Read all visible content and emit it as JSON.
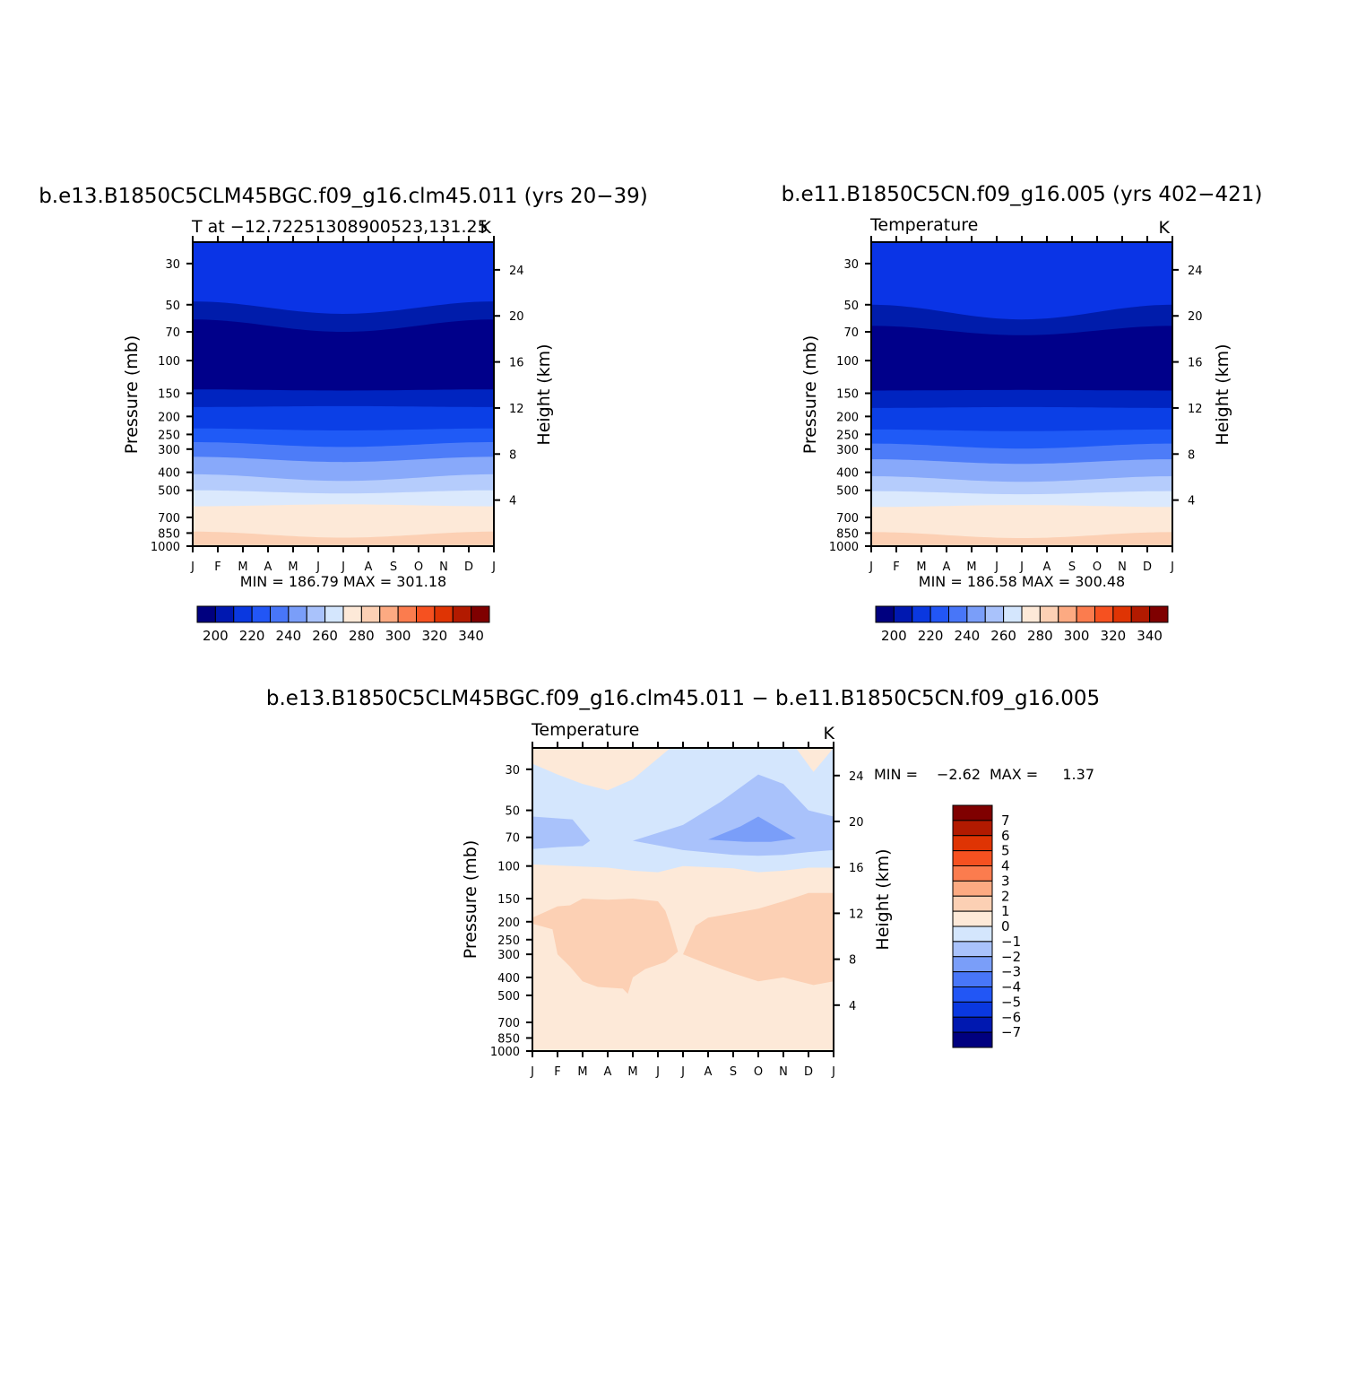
{
  "figure": {
    "months": [
      "J",
      "F",
      "M",
      "A",
      "M",
      "J",
      "J",
      "A",
      "S",
      "O",
      "N",
      "D",
      "J"
    ],
    "pressure_levels": [
      30,
      50,
      70,
      100,
      150,
      200,
      250,
      300,
      400,
      500,
      700,
      850,
      1000
    ],
    "height_ticks_km": [
      4,
      8,
      12,
      16,
      20,
      24
    ]
  },
  "chart_data": [
    {
      "type": "heatmap",
      "title": "b.e13.B1850C5CLM45BGC.f09_g16.clm45.011 (yrs 20−39)",
      "subtitle": "T at −12.72251308900523,131.25",
      "units": "K",
      "ylabel": "Pressure (mb)",
      "y2label": "Height (km)",
      "stats": "MIN = 186.79 MAX = 301.18",
      "min": 186.79,
      "max": 301.18,
      "colorbar": {
        "labels": [
          "200",
          "220",
          "240",
          "260",
          "280",
          "300",
          "320",
          "340"
        ]
      },
      "contour_bands_bottom_pressure_mb": {
        "note_levels": [
          "200-210",
          "210-220",
          "220-230",
          "230-240",
          "240-250",
          "250-260",
          "260-270",
          "270-280",
          "280-290",
          "290-300"
        ],
        "jan": [
          23,
          51,
          145,
          205,
          245,
          300,
          390,
          480,
          550,
          700,
          850,
          1000
        ],
        "jul": [
          23,
          57,
          146,
          205,
          250,
          320,
          420,
          500,
          560,
          690,
          900,
          1000
        ]
      }
    },
    {
      "type": "heatmap",
      "title": "b.e11.B1850C5CN.f09_g16.005 (yrs 402−421)",
      "subtitle": "Temperature",
      "units": "K",
      "ylabel": "Pressure (mb)",
      "y2label": "Height (km)",
      "stats": "MIN = 186.58 MAX = 300.48",
      "min": 186.58,
      "max": 300.48,
      "colorbar": {
        "labels": [
          "200",
          "220",
          "240",
          "260",
          "280",
          "300",
          "320",
          "340"
        ]
      }
    },
    {
      "type": "heatmap",
      "title": "b.e13.B1850C5CLM45BGC.f09_g16.clm45.011 − b.e11.B1850C5CN.f09_g16.005",
      "subtitle": "Temperature",
      "units": "K",
      "ylabel": "Pressure (mb)",
      "y2label": "Height (km)",
      "stats_min_label": "MIN =",
      "stats_min": "−2.62",
      "stats_max_label": "MAX =",
      "stats_max": "1.37",
      "min": -2.62,
      "max": 1.37,
      "colorbar": {
        "labels": [
          "7",
          "6",
          "5",
          "4",
          "3",
          "2",
          "1",
          "0",
          "−1",
          "−2",
          "−3",
          "−4",
          "−5",
          "−6",
          "−7"
        ]
      }
    }
  ],
  "colors": {
    "blues": [
      "#00007f",
      "#0018b0",
      "#0a38e0",
      "#2256f5",
      "#4876f8",
      "#7a9ef9",
      "#a9c2fb",
      "#d4e6fd"
    ],
    "reds": [
      "#fde9d8",
      "#fcd0b4",
      "#fcaa82",
      "#fb7c4e",
      "#f65120",
      "#df3404",
      "#b21a00",
      "#7f0000"
    ]
  }
}
